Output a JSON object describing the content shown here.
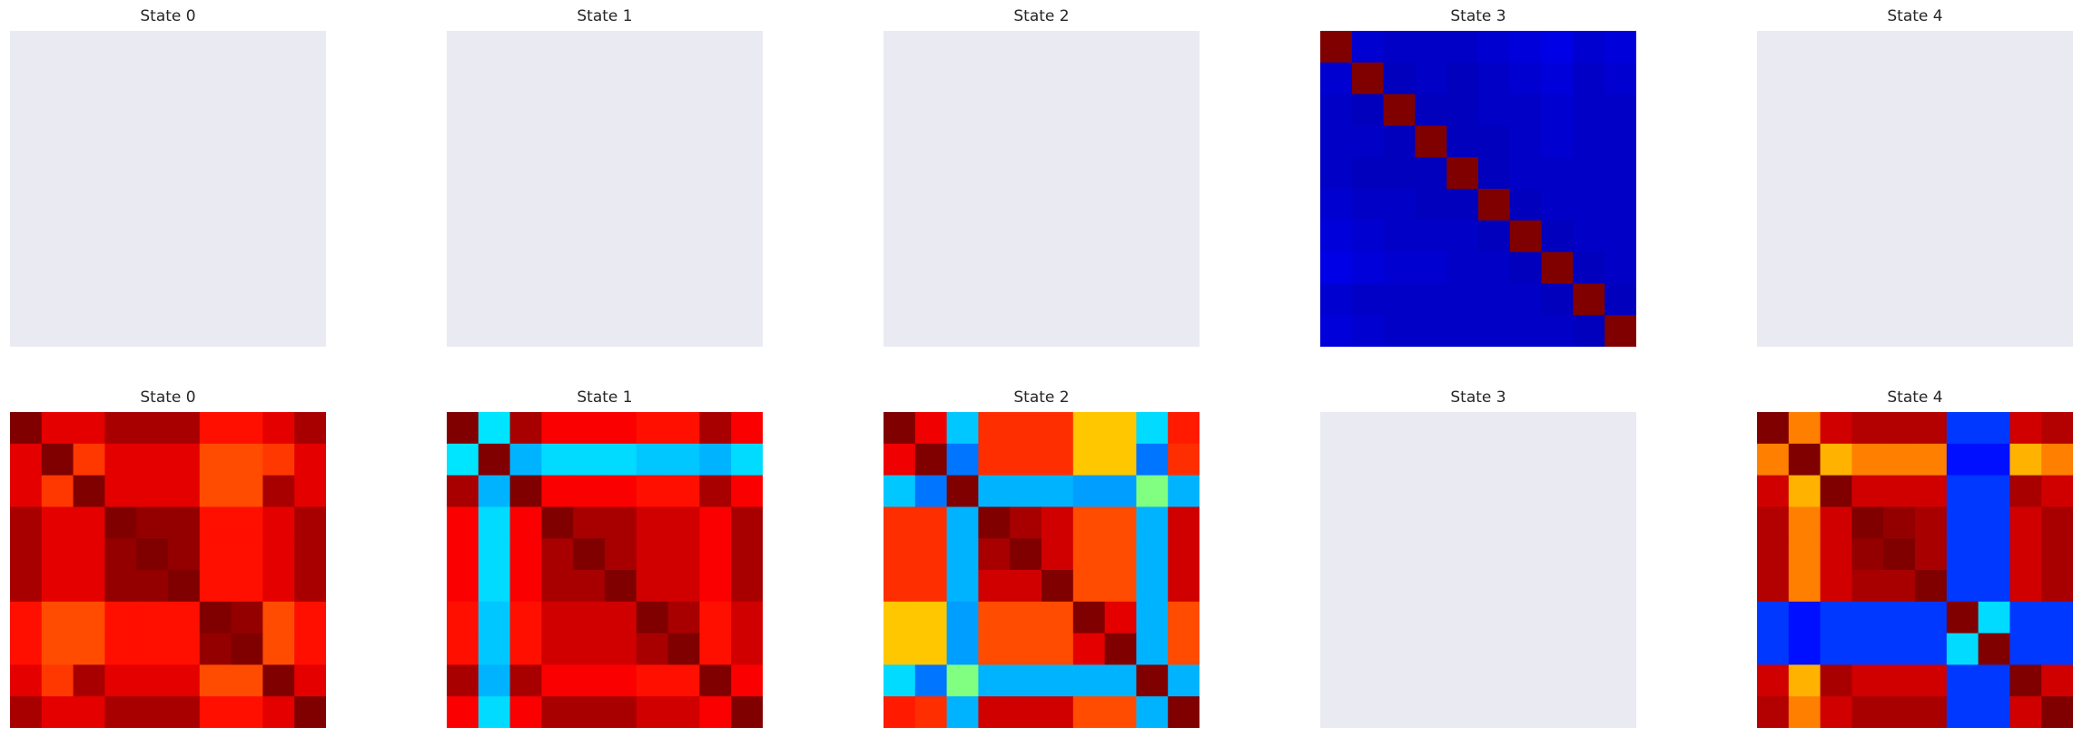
{
  "figure": {
    "background": "#ffffff",
    "empty_panel_color": "#eaeaf2",
    "colormap": "jet"
  },
  "chart_data": [
    {
      "type": "heatmap",
      "title": "State 0",
      "row": 0,
      "col": 0,
      "empty": true,
      "matrix": []
    },
    {
      "type": "heatmap",
      "title": "State 1",
      "row": 0,
      "col": 1,
      "empty": true,
      "matrix": []
    },
    {
      "type": "heatmap",
      "title": "State 2",
      "row": 0,
      "col": 2,
      "empty": true,
      "matrix": []
    },
    {
      "type": "heatmap",
      "title": "State 3",
      "row": 0,
      "col": 3,
      "empty": false,
      "matrix": [
        [
          1.0,
          0.08,
          0.07,
          0.07,
          0.07,
          0.08,
          0.09,
          0.1,
          0.08,
          0.09
        ],
        [
          0.08,
          1.0,
          0.06,
          0.07,
          0.06,
          0.07,
          0.08,
          0.09,
          0.07,
          0.08
        ],
        [
          0.07,
          0.06,
          1.0,
          0.06,
          0.06,
          0.07,
          0.07,
          0.08,
          0.07,
          0.07
        ],
        [
          0.07,
          0.07,
          0.06,
          1.0,
          0.06,
          0.06,
          0.07,
          0.08,
          0.07,
          0.07
        ],
        [
          0.07,
          0.06,
          0.06,
          0.06,
          1.0,
          0.06,
          0.07,
          0.07,
          0.07,
          0.07
        ],
        [
          0.08,
          0.07,
          0.07,
          0.06,
          0.06,
          1.0,
          0.06,
          0.07,
          0.07,
          0.07
        ],
        [
          0.09,
          0.08,
          0.07,
          0.07,
          0.07,
          0.06,
          1.0,
          0.06,
          0.07,
          0.07
        ],
        [
          0.1,
          0.09,
          0.08,
          0.08,
          0.07,
          0.07,
          0.06,
          1.0,
          0.06,
          0.07
        ],
        [
          0.08,
          0.07,
          0.07,
          0.07,
          0.07,
          0.07,
          0.07,
          0.06,
          1.0,
          0.06
        ],
        [
          0.09,
          0.08,
          0.07,
          0.07,
          0.07,
          0.07,
          0.07,
          0.07,
          0.06,
          1.0
        ]
      ]
    },
    {
      "type": "heatmap",
      "title": "State 4",
      "row": 0,
      "col": 4,
      "empty": true,
      "matrix": []
    },
    {
      "type": "heatmap",
      "title": "State 0",
      "row": 1,
      "col": 0,
      "empty": false,
      "matrix": [
        [
          1.0,
          0.9,
          0.9,
          0.96,
          0.96,
          0.96,
          0.86,
          0.86,
          0.9,
          0.96
        ],
        [
          0.9,
          1.0,
          0.82,
          0.9,
          0.9,
          0.9,
          0.8,
          0.8,
          0.82,
          0.9
        ],
        [
          0.9,
          0.82,
          1.0,
          0.9,
          0.9,
          0.9,
          0.8,
          0.8,
          0.96,
          0.9
        ],
        [
          0.96,
          0.9,
          0.9,
          1.0,
          0.98,
          0.98,
          0.86,
          0.86,
          0.9,
          0.96
        ],
        [
          0.96,
          0.9,
          0.9,
          0.98,
          1.0,
          0.98,
          0.86,
          0.86,
          0.9,
          0.96
        ],
        [
          0.96,
          0.9,
          0.9,
          0.98,
          0.98,
          1.0,
          0.86,
          0.86,
          0.9,
          0.96
        ],
        [
          0.86,
          0.8,
          0.8,
          0.86,
          0.86,
          0.86,
          1.0,
          0.98,
          0.8,
          0.86
        ],
        [
          0.86,
          0.8,
          0.8,
          0.86,
          0.86,
          0.86,
          0.98,
          1.0,
          0.8,
          0.86
        ],
        [
          0.9,
          0.82,
          0.96,
          0.9,
          0.9,
          0.9,
          0.8,
          0.8,
          1.0,
          0.9
        ],
        [
          0.96,
          0.9,
          0.9,
          0.96,
          0.96,
          0.96,
          0.86,
          0.86,
          0.9,
          1.0
        ]
      ]
    },
    {
      "type": "heatmap",
      "title": "State 1",
      "row": 1,
      "col": 1,
      "empty": false,
      "matrix": [
        [
          1.0,
          0.35,
          0.96,
          0.88,
          0.88,
          0.88,
          0.86,
          0.86,
          0.96,
          0.88
        ],
        [
          0.35,
          1.0,
          0.3,
          0.34,
          0.34,
          0.34,
          0.32,
          0.32,
          0.3,
          0.34
        ],
        [
          0.96,
          0.3,
          1.0,
          0.88,
          0.88,
          0.88,
          0.86,
          0.86,
          0.96,
          0.88
        ],
        [
          0.88,
          0.34,
          0.88,
          1.0,
          0.96,
          0.96,
          0.92,
          0.92,
          0.88,
          0.96
        ],
        [
          0.88,
          0.34,
          0.88,
          0.96,
          1.0,
          0.96,
          0.92,
          0.92,
          0.88,
          0.96
        ],
        [
          0.88,
          0.34,
          0.88,
          0.96,
          0.96,
          1.0,
          0.92,
          0.92,
          0.88,
          0.96
        ],
        [
          0.86,
          0.32,
          0.86,
          0.92,
          0.92,
          0.92,
          1.0,
          0.96,
          0.86,
          0.92
        ],
        [
          0.86,
          0.32,
          0.86,
          0.92,
          0.92,
          0.92,
          0.96,
          1.0,
          0.86,
          0.92
        ],
        [
          0.96,
          0.3,
          0.96,
          0.88,
          0.88,
          0.88,
          0.86,
          0.86,
          1.0,
          0.88
        ],
        [
          0.88,
          0.34,
          0.88,
          0.96,
          0.96,
          0.96,
          0.92,
          0.92,
          0.88,
          1.0
        ]
      ]
    },
    {
      "type": "heatmap",
      "title": "State 2",
      "row": 1,
      "col": 2,
      "empty": false,
      "matrix": [
        [
          1.0,
          0.89,
          0.32,
          0.83,
          0.83,
          0.83,
          0.68,
          0.68,
          0.34,
          0.85
        ],
        [
          0.89,
          1.0,
          0.24,
          0.83,
          0.83,
          0.83,
          0.68,
          0.68,
          0.24,
          0.83
        ],
        [
          0.32,
          0.24,
          1.0,
          0.3,
          0.3,
          0.3,
          0.28,
          0.28,
          0.5,
          0.3
        ],
        [
          0.83,
          0.83,
          0.3,
          1.0,
          0.96,
          0.92,
          0.8,
          0.8,
          0.3,
          0.92
        ],
        [
          0.83,
          0.83,
          0.3,
          0.96,
          1.0,
          0.92,
          0.8,
          0.8,
          0.3,
          0.92
        ],
        [
          0.83,
          0.83,
          0.3,
          0.92,
          0.92,
          1.0,
          0.8,
          0.8,
          0.3,
          0.92
        ],
        [
          0.68,
          0.68,
          0.28,
          0.8,
          0.8,
          0.8,
          1.0,
          0.9,
          0.3,
          0.8
        ],
        [
          0.68,
          0.68,
          0.28,
          0.8,
          0.8,
          0.8,
          0.9,
          1.0,
          0.3,
          0.8
        ],
        [
          0.34,
          0.24,
          0.5,
          0.3,
          0.3,
          0.3,
          0.3,
          0.3,
          1.0,
          0.3
        ],
        [
          0.85,
          0.83,
          0.3,
          0.92,
          0.92,
          0.92,
          0.8,
          0.8,
          0.3,
          1.0
        ]
      ]
    },
    {
      "type": "heatmap",
      "title": "State 3",
      "row": 1,
      "col": 3,
      "empty": true,
      "matrix": []
    },
    {
      "type": "heatmap",
      "title": "State 4",
      "row": 1,
      "col": 4,
      "empty": false,
      "matrix": [
        [
          1.0,
          0.75,
          0.92,
          0.95,
          0.95,
          0.95,
          0.18,
          0.18,
          0.92,
          0.95
        ],
        [
          0.75,
          1.0,
          0.7,
          0.75,
          0.75,
          0.75,
          0.14,
          0.14,
          0.7,
          0.75
        ],
        [
          0.92,
          0.7,
          1.0,
          0.92,
          0.92,
          0.92,
          0.18,
          0.18,
          0.96,
          0.92
        ],
        [
          0.95,
          0.75,
          0.92,
          1.0,
          0.98,
          0.96,
          0.18,
          0.18,
          0.92,
          0.96
        ],
        [
          0.95,
          0.75,
          0.92,
          0.98,
          1.0,
          0.96,
          0.18,
          0.18,
          0.92,
          0.96
        ],
        [
          0.95,
          0.75,
          0.92,
          0.96,
          0.96,
          1.0,
          0.18,
          0.18,
          0.92,
          0.96
        ],
        [
          0.18,
          0.14,
          0.18,
          0.18,
          0.18,
          0.18,
          1.0,
          0.34,
          0.18,
          0.18
        ],
        [
          0.18,
          0.14,
          0.18,
          0.18,
          0.18,
          0.18,
          0.34,
          1.0,
          0.18,
          0.18
        ],
        [
          0.92,
          0.7,
          0.96,
          0.92,
          0.92,
          0.92,
          0.18,
          0.18,
          1.0,
          0.92
        ],
        [
          0.95,
          0.75,
          0.92,
          0.96,
          0.96,
          0.96,
          0.18,
          0.18,
          0.92,
          1.0
        ]
      ]
    }
  ]
}
